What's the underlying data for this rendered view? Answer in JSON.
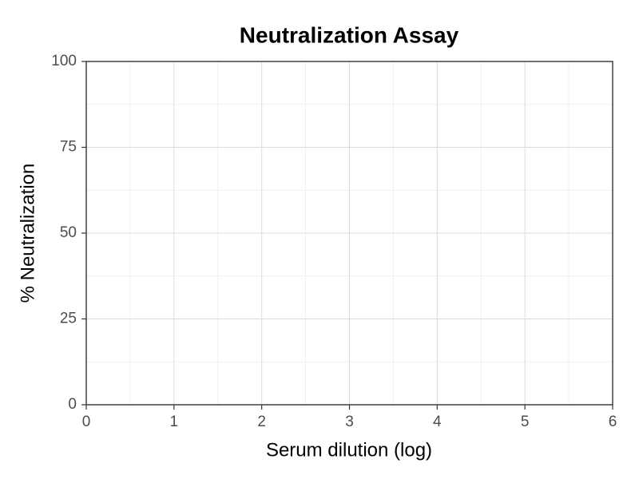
{
  "chart_data": {
    "type": "scatter",
    "title": "Neutralization Assay",
    "x_label": "Serum dilution (log)",
    "y_label": "% Neutralization",
    "xlim": [
      0,
      6
    ],
    "xticks": [
      0,
      1,
      2,
      3,
      4,
      5,
      6
    ],
    "ylim": [
      0,
      100
    ],
    "yticks": [
      0,
      25,
      50,
      75,
      100
    ],
    "grid": true,
    "series": []
  }
}
